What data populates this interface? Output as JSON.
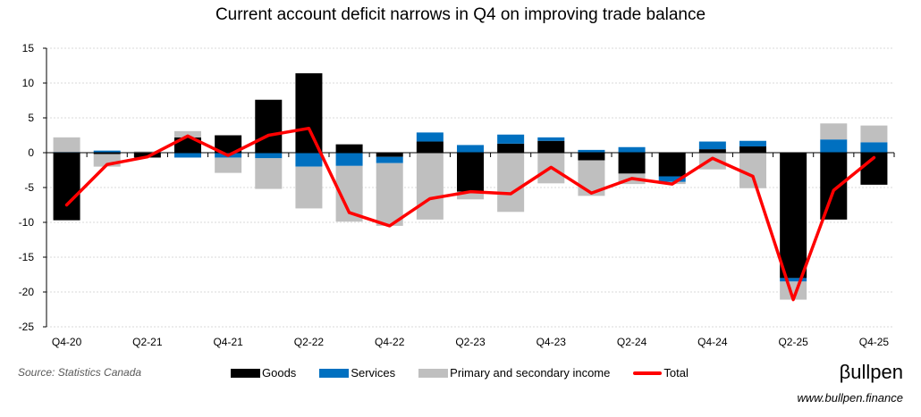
{
  "chart_data": {
    "type": "bar",
    "title": "Current account deficit narrows in Q4 on improving trade balance",
    "x_tick_labels": [
      "Q4-20",
      "Q2-21",
      "Q4-21",
      "Q2-22",
      "Q4-22",
      "Q2-23",
      "Q4-23",
      "Q2-24",
      "Q4-24",
      "Q2-25",
      "Q4-25"
    ],
    "y_ticks": [
      15,
      10,
      5,
      0,
      -5,
      -10,
      -15,
      -20,
      -25
    ],
    "ylim": [
      -25,
      15
    ],
    "grid": true,
    "legend_position": "bottom",
    "series": [
      {
        "name": "Goods",
        "kind": "stacked-bar",
        "color": "#000000",
        "values": [
          -9.7,
          -0.2,
          -0.7,
          2.2,
          2.5,
          7.6,
          11.4,
          1.2,
          -0.6,
          1.6,
          -5.6,
          1.3,
          1.7,
          -1.1,
          -3.0,
          -3.4,
          0.5,
          0.9,
          -18.0,
          -9.6,
          -4.6
        ]
      },
      {
        "name": "Services",
        "kind": "stacked-bar",
        "color": "#0070C0",
        "values": [
          0.1,
          0.3,
          0.0,
          -0.7,
          -0.7,
          -0.8,
          -2.0,
          -1.9,
          -0.9,
          1.3,
          1.1,
          1.3,
          0.5,
          0.4,
          0.8,
          -0.8,
          1.1,
          0.8,
          -0.5,
          1.9,
          1.5
        ]
      },
      {
        "name": "Primary and secondary income",
        "kind": "stacked-bar",
        "color": "#BFBFBF",
        "values": [
          2.1,
          -1.8,
          0.2,
          0.9,
          -2.2,
          -4.4,
          -6.0,
          -8.0,
          -9.0,
          -9.6,
          -1.1,
          -8.5,
          -4.4,
          -5.1,
          -1.5,
          -0.3,
          -2.4,
          -5.1,
          -2.6,
          2.3,
          2.4
        ]
      },
      {
        "name": "Total",
        "kind": "line",
        "color": "#FF0000",
        "values": [
          -7.5,
          -1.7,
          -0.6,
          2.4,
          -0.4,
          2.5,
          3.5,
          -8.6,
          -10.5,
          -6.6,
          -5.6,
          -5.9,
          -2.1,
          -5.8,
          -3.7,
          -4.5,
          -0.8,
          -3.4,
          -21.1,
          -5.4,
          -0.7
        ]
      }
    ]
  },
  "source": "Source: Statistics Canada",
  "brand": {
    "logo": "βullpen",
    "url": "www.bullpen.finance"
  }
}
